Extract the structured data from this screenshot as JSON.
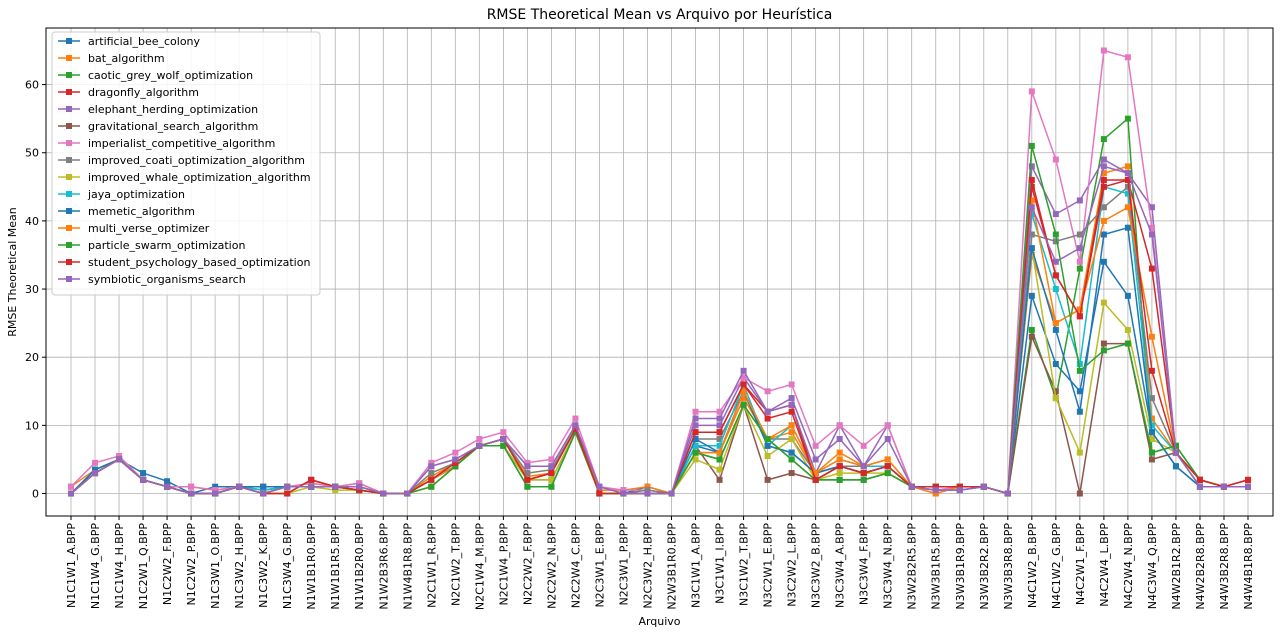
{
  "chart_data": {
    "type": "line",
    "title": "RMSE Theoretical Mean vs Arquivo por Heurística",
    "xlabel": "Arquivo",
    "ylabel": "RMSE Theoretical Mean",
    "ylim": [
      -3.3,
      68.3
    ],
    "yticks": [
      0,
      10,
      20,
      30,
      40,
      50,
      60
    ],
    "grid": true,
    "legend_position": "top-left",
    "marker": "square",
    "categories": [
      "N1C1W1_A.BPP",
      "N1C1W4_G.BPP",
      "N1C1W4_H.BPP",
      "N1C2W1_Q.BPP",
      "N1C2W2_F.BPP",
      "N1C2W2_P.BPP",
      "N1C3W1_O.BPP",
      "N1C3W2_H.BPP",
      "N1C3W2_K.BPP",
      "N1C3W4_G.BPP",
      "N1W1B1R0.BPP",
      "N1W1B1R5.BPP",
      "N1W1B2R0.BPP",
      "N1W2B3R6.BPP",
      "N1W4B1R8.BPP",
      "N2C1W1_R.BPP",
      "N2C1W2_T.BPP",
      "N2C1W4_M.BPP",
      "N2C1W4_P.BPP",
      "N2C2W2_F.BPP",
      "N2C2W2_N.BPP",
      "N2C2W4_C.BPP",
      "N2C3W1_E.BPP",
      "N2C3W1_P.BPP",
      "N2C3W2_H.BPP",
      "N2W3B1R0.BPP",
      "N3C1W1_A.BPP",
      "N3C1W1_I.BPP",
      "N3C1W2_T.BPP",
      "N3C2W1_E.BPP",
      "N3C2W2_L.BPP",
      "N3C3W2_B.BPP",
      "N3C3W4_A.BPP",
      "N3C3W4_F.BPP",
      "N3C3W4_N.BPP",
      "N3W2B2R5.BPP",
      "N3W3B1R5.BPP",
      "N3W3B1R9.BPP",
      "N3W3B2R2.BPP",
      "N3W3B3R8.BPP",
      "N4C1W2_B.BPP",
      "N4C1W2_G.BPP",
      "N4C2W1_F.BPP",
      "N4C2W4_L.BPP",
      "N4C2W4_N.BPP",
      "N4C3W4_Q.BPP",
      "N4W2B1R2.BPP",
      "N4W2B2R8.BPP",
      "N4W3B2R8.BPP",
      "N4W4B1R8.BPP"
    ],
    "series": [
      {
        "name": "artificial_bee_colony",
        "color": "#1f77b4",
        "values": [
          0,
          3.5,
          5,
          3,
          1.8,
          0,
          1,
          1,
          1,
          1,
          1,
          1,
          1,
          0,
          0,
          2,
          4.5,
          7,
          8,
          2,
          3,
          9.5,
          0,
          0,
          1,
          0,
          7,
          6,
          15,
          7,
          6,
          3,
          4,
          3,
          4,
          1,
          1,
          1,
          1,
          0,
          29,
          19,
          15,
          34,
          29,
          9,
          4,
          1,
          1,
          1
        ]
      },
      {
        "name": "bat_algorithm",
        "color": "#ff7f0e",
        "values": [
          1,
          3.5,
          5,
          2,
          1,
          1,
          0.5,
          1,
          1,
          1,
          1.5,
          1,
          0.5,
          0,
          0,
          2.5,
          4.5,
          7,
          8,
          2.5,
          3,
          9.5,
          0.5,
          0.5,
          1,
          0,
          6,
          6,
          14,
          8,
          9,
          3,
          6,
          4,
          5,
          1,
          0,
          1,
          1,
          0,
          35,
          25,
          27,
          47,
          48,
          11,
          6,
          2,
          1,
          1
        ]
      },
      {
        "name": "caotic_grey_wolf_optimization",
        "color": "#2ca02c",
        "values": [
          0,
          3,
          5,
          2,
          1,
          0,
          0,
          1,
          0.5,
          1,
          1,
          1,
          0.5,
          0,
          0,
          1,
          4,
          7,
          7,
          1,
          1,
          9,
          0,
          0,
          0,
          0,
          6,
          5,
          13,
          8,
          5,
          2,
          2,
          2,
          3,
          1,
          1,
          1,
          1,
          0,
          24,
          14,
          33,
          52,
          55,
          6,
          7,
          2,
          1,
          1
        ]
      },
      {
        "name": "dragonfly_algorithm",
        "color": "#d62728",
        "values": [
          0,
          3,
          5,
          2,
          1,
          0,
          0,
          1,
          0,
          0,
          2,
          1,
          0.5,
          0,
          0,
          2,
          4.5,
          7,
          8,
          2,
          3,
          9.5,
          0,
          0,
          0,
          0,
          9,
          9,
          16,
          12,
          13,
          2,
          4,
          3,
          4,
          1,
          1,
          1,
          1,
          0,
          45,
          32,
          26,
          46,
          46,
          33,
          6,
          2,
          1,
          2
        ]
      },
      {
        "name": "elephant_herding_optimization",
        "color": "#9467bd",
        "values": [
          0,
          3,
          5,
          2,
          1,
          0,
          0,
          1,
          0.5,
          1,
          1,
          1,
          1.5,
          0,
          0,
          4,
          5,
          7,
          8,
          4,
          4,
          10,
          1,
          0,
          0,
          0,
          10,
          10,
          17,
          12,
          13,
          3,
          10,
          4,
          10,
          1,
          0.5,
          0.5,
          1,
          0,
          48,
          41,
          43,
          49,
          47,
          42,
          6,
          1,
          1,
          1
        ]
      },
      {
        "name": "gravitational_search_algorithm",
        "color": "#8c564b",
        "values": [
          0,
          3,
          5,
          2,
          1,
          0,
          0,
          1,
          0,
          0,
          2,
          1,
          0.5,
          0,
          0,
          2,
          4,
          7,
          7,
          2,
          2,
          9,
          0,
          0,
          0,
          0,
          7,
          2,
          13,
          2,
          3,
          2,
          4,
          3,
          4,
          1,
          1,
          1,
          1,
          0,
          23,
          15,
          0,
          22,
          22,
          5,
          6,
          2,
          1,
          1
        ]
      },
      {
        "name": "imperialist_competitive_algorithm",
        "color": "#e377c2",
        "values": [
          1,
          4.5,
          5.5,
          2,
          1,
          1,
          0.5,
          1,
          1,
          1,
          1.5,
          1,
          1.5,
          0,
          0,
          4.5,
          6,
          8,
          9,
          4.5,
          5,
          11,
          1,
          0.5,
          0.5,
          0,
          12,
          12,
          17,
          15,
          16,
          7,
          10,
          7,
          10,
          1,
          0.5,
          1,
          1,
          0,
          59,
          49,
          34,
          65,
          64,
          39,
          6,
          2,
          1,
          1
        ]
      },
      {
        "name": "improved_coati_optimization_algorithm",
        "color": "#7f7f7f",
        "values": [
          0,
          3,
          5,
          2,
          1,
          0,
          0,
          1,
          0,
          1,
          1,
          1,
          0.5,
          0,
          0,
          3,
          4.5,
          7,
          8,
          3,
          3.5,
          9.5,
          0,
          0,
          0.5,
          0,
          8,
          8,
          15,
          8,
          8,
          3,
          4,
          4,
          4,
          1,
          1,
          1,
          1,
          0,
          38,
          37,
          38,
          42,
          45,
          14,
          6,
          2,
          1,
          1
        ]
      },
      {
        "name": "improved_whale_optimization_algorithm",
        "color": "#bcbd22",
        "values": [
          0,
          3,
          5,
          2,
          1,
          0,
          0,
          1,
          0,
          0,
          1,
          0.5,
          0.5,
          0,
          0,
          1,
          4,
          7,
          7,
          2,
          2,
          9,
          0,
          0,
          0,
          0,
          5,
          3.5,
          13,
          5.5,
          8,
          2,
          3,
          3,
          3,
          1,
          1,
          1,
          1,
          0,
          36,
          14,
          6,
          28,
          24,
          8,
          6,
          1,
          1,
          1
        ]
      },
      {
        "name": "jaya_optimization",
        "color": "#17becf",
        "values": [
          0,
          3.5,
          5,
          2,
          1,
          0,
          0,
          1,
          0.5,
          1,
          1,
          1,
          1,
          0,
          0,
          2,
          4.5,
          7,
          8,
          2,
          3,
          9.5,
          0,
          0,
          0,
          0,
          7,
          7,
          16,
          7,
          10,
          3,
          5,
          4,
          4,
          1,
          0.5,
          0.5,
          1,
          0,
          41,
          30,
          19,
          45,
          44,
          10,
          6,
          1,
          1,
          1
        ]
      },
      {
        "name": "memetic_algorithm",
        "color": "#1f77b4",
        "values": [
          0,
          3.5,
          5,
          2,
          1,
          0,
          0,
          1,
          1,
          1,
          1,
          1,
          1,
          0,
          0,
          2,
          4,
          7,
          8,
          2,
          3,
          9.5,
          0,
          0,
          0,
          0,
          8,
          6,
          15,
          7,
          6,
          3,
          4,
          3,
          4,
          1,
          1,
          1,
          1,
          0,
          36,
          24,
          12,
          38,
          39,
          9,
          4,
          1,
          1,
          1
        ]
      },
      {
        "name": "multi_verse_optimizer",
        "color": "#ff7f0e",
        "values": [
          0,
          3,
          5,
          2,
          1,
          0,
          0,
          1,
          0,
          1,
          1,
          1,
          1,
          0,
          0,
          2,
          4,
          7,
          8,
          2,
          3,
          9.5,
          0,
          0,
          0,
          0,
          6,
          6,
          15,
          8,
          10,
          3,
          5,
          4,
          5,
          1,
          0,
          1,
          1,
          0,
          43,
          25,
          27,
          40,
          42,
          23,
          6,
          2,
          1,
          1
        ]
      },
      {
        "name": "particle_swarm_optimization",
        "color": "#2ca02c",
        "values": [
          0,
          3,
          5,
          2,
          1,
          0,
          0,
          1,
          0,
          1,
          1,
          1,
          0.5,
          0,
          0,
          1,
          4,
          7,
          7,
          1,
          1,
          9,
          0,
          0,
          0,
          0,
          6,
          5,
          13,
          8,
          5,
          2,
          2,
          2,
          3,
          1,
          1,
          1,
          1,
          0,
          51,
          38,
          18,
          21,
          22,
          6,
          7,
          2,
          1,
          1
        ]
      },
      {
        "name": "student_psychology_based_optimization",
        "color": "#d62728",
        "values": [
          0,
          3,
          5,
          2,
          1,
          0,
          0,
          1,
          0,
          0,
          2,
          1,
          0.5,
          0,
          0,
          2,
          4.5,
          7,
          8,
          2,
          3,
          9.5,
          0,
          0,
          0,
          0,
          9,
          9,
          16,
          11,
          12,
          2,
          4,
          3,
          4,
          1,
          1,
          1,
          1,
          0,
          46,
          32,
          26,
          45,
          46,
          18,
          6,
          2,
          1,
          2
        ]
      },
      {
        "name": "symbiotic_organisms_search",
        "color": "#9467bd",
        "values": [
          0,
          3,
          5,
          2,
          1,
          0,
          0,
          1,
          0,
          1,
          1,
          1,
          1,
          0,
          0,
          4,
          5,
          7,
          8,
          4,
          4,
          10,
          1,
          0,
          0,
          0,
          11,
          11,
          18,
          12,
          14,
          5,
          8,
          4,
          8,
          1,
          0.5,
          0.5,
          1,
          0,
          42,
          34,
          36,
          48,
          47,
          38,
          6,
          1,
          1,
          1
        ]
      }
    ]
  }
}
